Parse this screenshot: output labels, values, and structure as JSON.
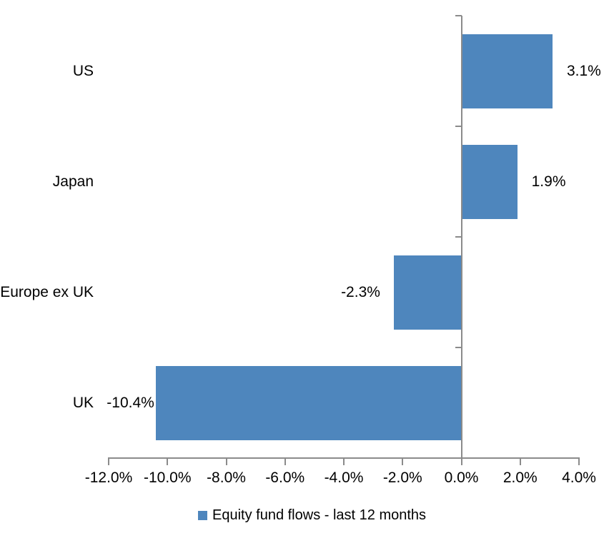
{
  "chart_data": {
    "type": "bar",
    "orientation": "horizontal",
    "title": "",
    "categories": [
      "US",
      "Japan",
      "Europe ex UK",
      "UK"
    ],
    "values": [
      3.1,
      1.9,
      -2.3,
      -10.4
    ],
    "data_labels": [
      "3.1%",
      "1.9%",
      "-2.3%",
      "-10.4%"
    ],
    "series": [
      {
        "name": "Equity fund flows - last 12 months",
        "values": [
          3.1,
          1.9,
          -2.3,
          -10.4
        ]
      }
    ],
    "xlabel": "",
    "ylabel": "",
    "xlim": [
      -12,
      4
    ],
    "x_ticks": [
      {
        "value": -12,
        "label": "-12.0%"
      },
      {
        "value": -10,
        "label": "-10.0%"
      },
      {
        "value": -8,
        "label": "-8.0%"
      },
      {
        "value": -6,
        "label": "-6.0%"
      },
      {
        "value": -4,
        "label": "-4.0%"
      },
      {
        "value": -2,
        "label": "-2.0%"
      },
      {
        "value": 0,
        "label": "0.0%"
      },
      {
        "value": 2,
        "label": "2.0%"
      },
      {
        "value": 4,
        "label": "4.0%"
      }
    ],
    "grid": false,
    "legend_position": "bottom",
    "colors": {
      "bar": "#4E86BD",
      "axis": "#8B8B8B",
      "text": "#000000",
      "background": "#FFFFFF"
    }
  },
  "legend": {
    "label": "Equity fund flows - last 12 months",
    "swatch_color": "#4E86BD"
  }
}
